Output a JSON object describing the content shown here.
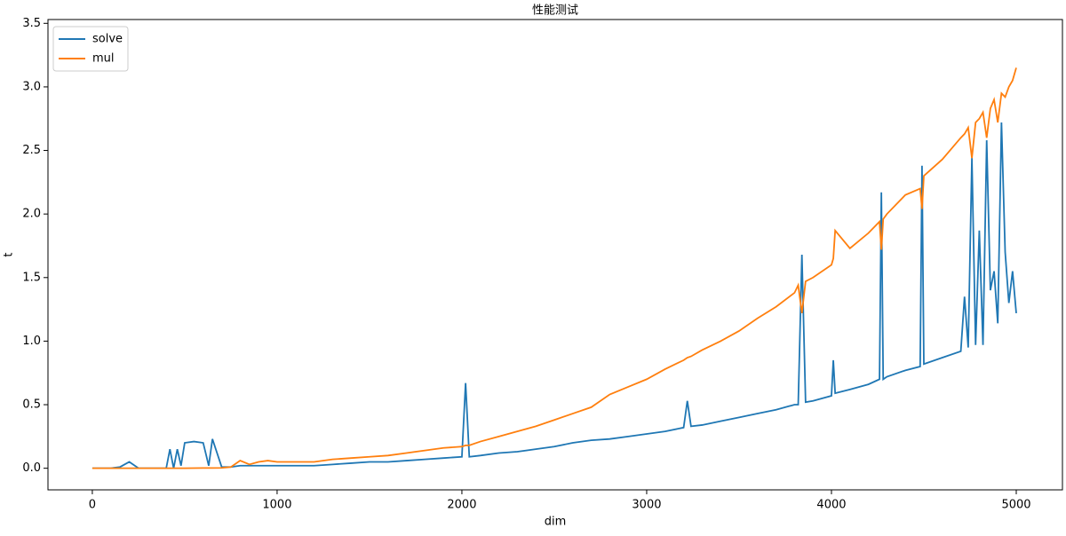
{
  "chart_data": {
    "type": "line",
    "title": "性能测试",
    "x_label": "dim",
    "y_label": "t",
    "x": [
      0,
      50,
      100,
      150,
      200,
      250,
      300,
      350,
      400,
      420,
      440,
      460,
      480,
      500,
      550,
      600,
      630,
      650,
      700,
      750,
      800,
      850,
      900,
      950,
      1000,
      1100,
      1200,
      1300,
      1400,
      1500,
      1600,
      1700,
      1800,
      1900,
      2000,
      2020,
      2040,
      2100,
      2200,
      2300,
      2400,
      2500,
      2600,
      2700,
      2800,
      2900,
      3000,
      3100,
      3200,
      3220,
      3240,
      3300,
      3400,
      3500,
      3600,
      3700,
      3800,
      3820,
      3840,
      3860,
      3900,
      4000,
      4010,
      4020,
      4100,
      4200,
      4260,
      4270,
      4280,
      4300,
      4400,
      4480,
      4490,
      4500,
      4600,
      4700,
      4720,
      4740,
      4760,
      4780,
      4800,
      4820,
      4840,
      4860,
      4880,
      4900,
      4920,
      4940,
      4960,
      4980,
      5000
    ],
    "series": [
      {
        "name": "solve",
        "color": "#1f77b4",
        "values": [
          0,
          0,
          0,
          0.01,
          0.05,
          0,
          0,
          0,
          0,
          0.15,
          0,
          0.15,
          0.02,
          0.2,
          0.21,
          0.2,
          0.02,
          0.23,
          0.01,
          0.01,
          0.02,
          0.02,
          0.02,
          0.02,
          0.02,
          0.02,
          0.02,
          0.03,
          0.04,
          0.05,
          0.05,
          0.06,
          0.07,
          0.08,
          0.09,
          0.67,
          0.09,
          0.1,
          0.12,
          0.13,
          0.15,
          0.17,
          0.2,
          0.22,
          0.23,
          0.25,
          0.27,
          0.29,
          0.32,
          0.53,
          0.33,
          0.34,
          0.37,
          0.4,
          0.43,
          0.46,
          0.5,
          0.5,
          1.68,
          0.52,
          0.53,
          0.57,
          0.85,
          0.59,
          0.62,
          0.66,
          0.7,
          2.17,
          0.7,
          0.72,
          0.77,
          0.8,
          2.38,
          0.82,
          0.87,
          0.92,
          1.35,
          0.95,
          2.44,
          0.97,
          1.87,
          0.97,
          2.58,
          1.4,
          1.55,
          1.14,
          2.72,
          1.7,
          1.3,
          1.55,
          1.22
        ]
      },
      {
        "name": "mul",
        "color": "#ff7f0e",
        "values": [
          0,
          0,
          0,
          0,
          0,
          0,
          0,
          0,
          0,
          0,
          0,
          0,
          0,
          0,
          0.001,
          0.002,
          0.002,
          0.002,
          0.003,
          0.01,
          0.06,
          0.03,
          0.05,
          0.06,
          0.05,
          0.05,
          0.05,
          0.07,
          0.08,
          0.09,
          0.1,
          0.12,
          0.14,
          0.16,
          0.17,
          0.18,
          0.18,
          0.21,
          0.25,
          0.29,
          0.33,
          0.38,
          0.43,
          0.48,
          0.58,
          0.64,
          0.7,
          0.78,
          0.85,
          0.87,
          0.88,
          0.93,
          1.0,
          1.08,
          1.18,
          1.27,
          1.38,
          1.44,
          1.22,
          1.47,
          1.5,
          1.6,
          1.65,
          1.87,
          1.73,
          1.85,
          1.94,
          1.72,
          1.96,
          2.0,
          2.15,
          2.2,
          2.04,
          2.3,
          2.43,
          2.6,
          2.63,
          2.68,
          2.44,
          2.72,
          2.75,
          2.8,
          2.6,
          2.83,
          2.9,
          2.72,
          2.95,
          2.92,
          3.0,
          3.05,
          3.15
        ]
      }
    ],
    "xlim": [
      -240,
      5250
    ],
    "ylim": [
      -0.17,
      3.53
    ],
    "xticks": [
      0,
      1000,
      2000,
      3000,
      4000,
      5000
    ],
    "yticks": [
      {
        "value": 0,
        "label": "0.0"
      },
      0.5,
      {
        "value": 1,
        "label": "1.0"
      },
      1.5,
      {
        "value": 2,
        "label": "2.0"
      },
      2.5,
      {
        "value": 3,
        "label": "3.0"
      },
      3.5
    ],
    "legend": "upper left"
  }
}
